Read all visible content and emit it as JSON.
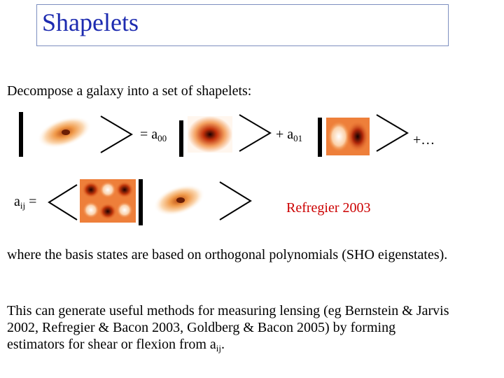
{
  "title": "Shapelets",
  "intro": "Decompose a galaxy into a set of shapelets:",
  "eq1": {
    "coef_a00_prefix": "= a",
    "coef_a00_sub": "00",
    "coef_a01_prefix": "+ a",
    "coef_a01_sub": "01",
    "ellipsis": "+…"
  },
  "eq2": {
    "aij_prefix": "a",
    "aij_sub": "ij",
    "equals": " ="
  },
  "citation": "Refregier 2003",
  "para1": "where the basis states are based on orthogonal polynomials (SHO eigenstates).",
  "para2_line1": "This can generate useful methods for measuring lensing (eg Bernstein & Jarvis",
  "para2_line2": "2002, Refregier & Bacon 2003, Goldberg & Bacon 2005) by forming",
  "para2_line3_prefix": "estimators for shear or flexion from a",
  "para2_line3_sub": "ij",
  "para2_line3_suffix": "."
}
